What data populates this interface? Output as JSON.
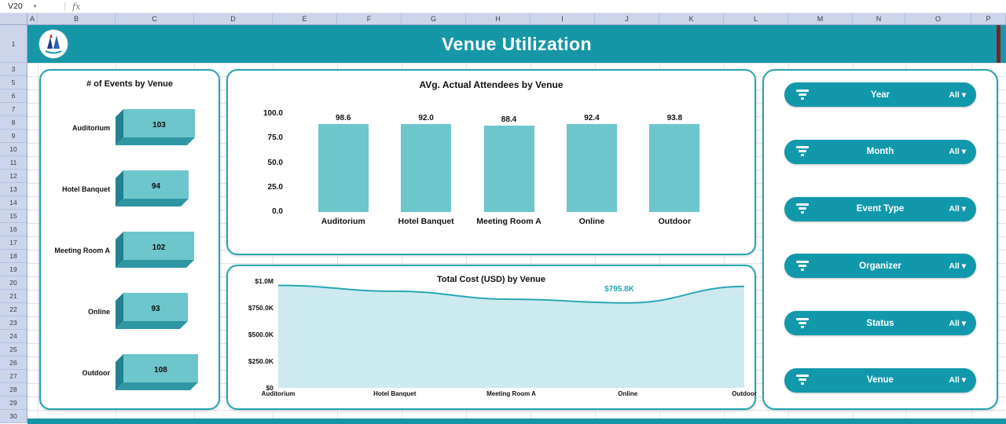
{
  "spreadsheet": {
    "name_box": "V20",
    "fx_label": "fx",
    "columns": [
      "A",
      "B",
      "C",
      "D",
      "E",
      "F",
      "G",
      "H",
      "I",
      "J",
      "K",
      "L",
      "M",
      "N",
      "O",
      "P"
    ],
    "rows": [
      "1",
      "3",
      "5",
      "6",
      "7",
      "8",
      "9",
      "10",
      "11",
      "12",
      "13",
      "14",
      "15",
      "16",
      "17",
      "18",
      "19",
      "20",
      "21",
      "22",
      "23",
      "24",
      "25",
      "26",
      "27",
      "28",
      "29",
      "30"
    ]
  },
  "header": {
    "title": "Venue Utilization"
  },
  "filters": {
    "dropdown_glyph": "▾",
    "items": [
      {
        "label": "Year",
        "value": "All"
      },
      {
        "label": "Month",
        "value": "All"
      },
      {
        "label": "Event Type",
        "value": "All"
      },
      {
        "label": "Organizer",
        "value": "All"
      },
      {
        "label": "Status",
        "value": "All"
      },
      {
        "label": "Venue",
        "value": "All"
      }
    ]
  },
  "chart_data": [
    {
      "type": "bar",
      "orientation": "horizontal-3d",
      "title": "# of Events by Venue",
      "categories": [
        "Auditorium",
        "Hotel Banquet",
        "Meeting Room A",
        "Online",
        "Outdoor"
      ],
      "values": [
        103,
        94,
        102,
        93,
        108
      ],
      "xlim": [
        0,
        110
      ]
    },
    {
      "type": "bar",
      "title": "AVg. Actual Attendees by Venue",
      "categories": [
        "Auditorium",
        "Hotel Banquet",
        "Meeting Room A",
        "Online",
        "Outdoor"
      ],
      "values": [
        98.6,
        92.0,
        88.4,
        92.4,
        93.8
      ],
      "value_labels": [
        "98.6",
        "92.0",
        "88.4",
        "92.4",
        "93.8"
      ],
      "ytick_labels": [
        "100.0",
        "75.0",
        "50.0",
        "25.0",
        "0.0"
      ],
      "ytick_values": [
        100,
        75,
        50,
        25,
        0
      ],
      "ylim": [
        0,
        100
      ],
      "grid": false
    },
    {
      "type": "area",
      "title": "Total Cost (USD) by Venue",
      "categories": [
        "Auditorium",
        "Hotel Banquet",
        "Meeting Room A",
        "Online",
        "Outdoor"
      ],
      "values_k": [
        960,
        905,
        830,
        795.8,
        950
      ],
      "ytick_labels": [
        "$1.0M",
        "$750.0K",
        "$500.0K",
        "$250.0K",
        "$0"
      ],
      "ytick_values_k": [
        1000,
        750,
        500,
        250,
        0
      ],
      "ylim_k": [
        0,
        1000
      ],
      "grid": false,
      "annotation": {
        "text": "$795.8K",
        "category": "Online"
      }
    }
  ],
  "colors": {
    "teal": "#1697a7",
    "pill": "#1199ab",
    "bar": "#6cc6cc",
    "bar_side": "#2f96a4",
    "bar_side_dark": "#23808f",
    "area_fill": "#cdeaee",
    "area_line": "#2aa8b4",
    "maroon": "#7c2128"
  }
}
